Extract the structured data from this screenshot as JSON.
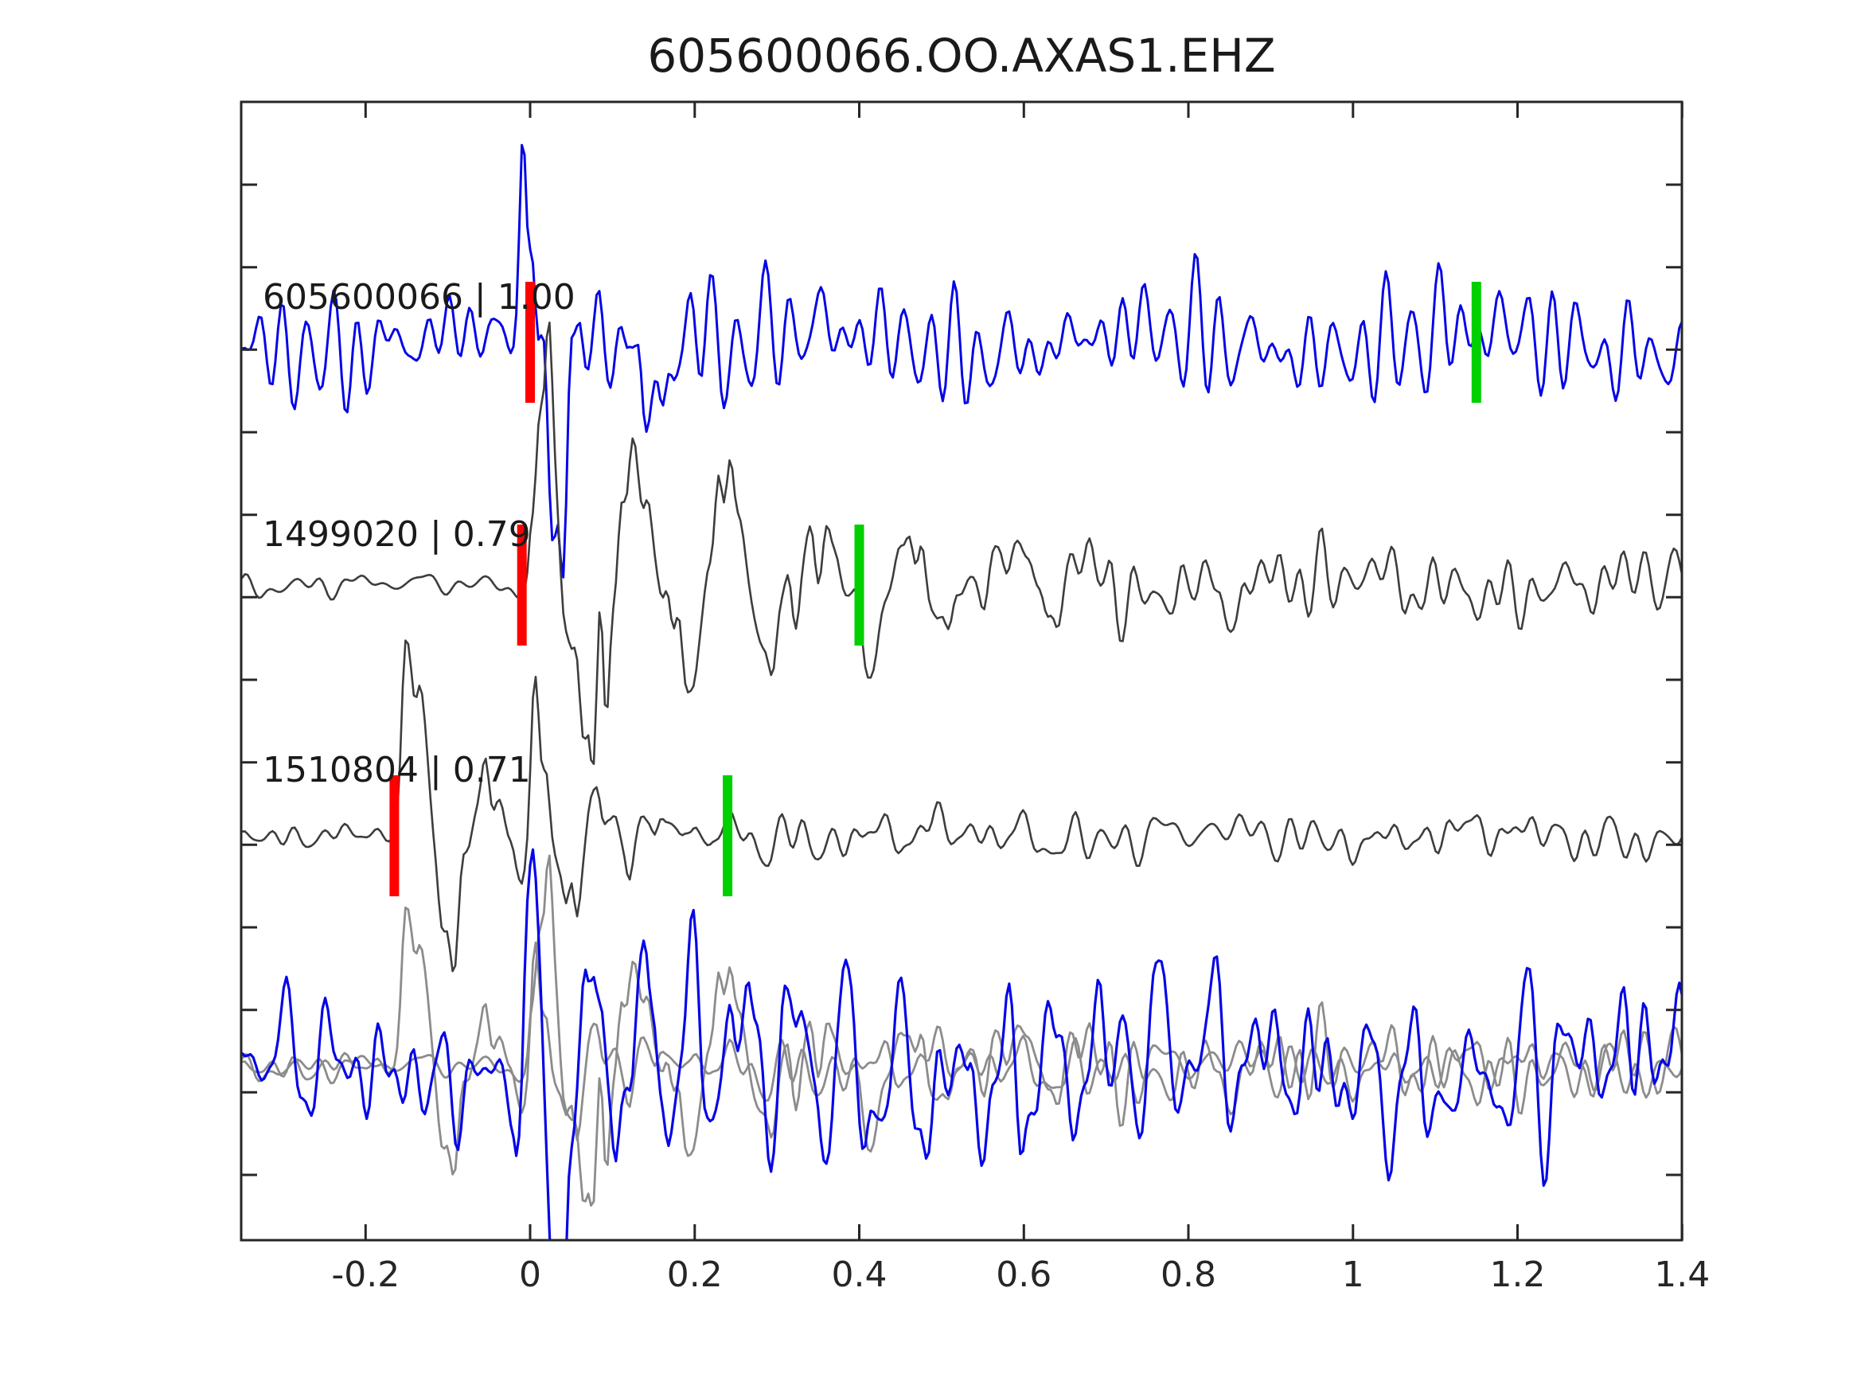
{
  "title": "605600066.OO.AXAS1.EHZ",
  "colors": {
    "background": "#ffffff",
    "spine": "#262626",
    "text": "#1a1a1a",
    "trace_blue": "#0505e8",
    "trace_dark": "#3d3d3d",
    "trace_gray": "#8c8c8c",
    "pick_red": "#ff0000",
    "pick_green": "#00cf00"
  },
  "chart_data": {
    "type": "line",
    "title": "605600066.OO.AXAS1.EHZ",
    "xlim": [
      -0.35,
      1.4
    ],
    "xticks": [
      -0.2,
      0,
      0.2,
      0.4,
      0.6,
      0.8,
      1,
      1.2,
      1.4
    ],
    "xtick_labels": [
      "-0.2",
      "0",
      "0.2",
      "0.4",
      "0.6",
      "0.8",
      "1",
      "1.2",
      "1.4"
    ],
    "ytick_count": 13,
    "grid": false,
    "legend": "none",
    "pick_markers": {
      "red": "#ff0000",
      "green": "#00cf00",
      "width": 12,
      "height": 152
    },
    "rows": [
      {
        "index": 0,
        "label": "605600066 | 1.00",
        "event_id": "605600066",
        "similarity": 1.0,
        "color": "#0505e8",
        "red_pick": 0.0,
        "green_pick": 1.15,
        "waveform": {
          "seed": 11,
          "pre_noise": 34,
          "post_noise": 34,
          "line_width": 3,
          "bursts": [
            {
              "t0": -0.02,
              "amp": 200,
              "decay": 0.05,
              "freq": 14,
              "phase": 0
            },
            {
              "t0": 0.01,
              "amp": -250,
              "decay": 0.04,
              "freq": 8,
              "phase": 0
            },
            {
              "t0": 0.12,
              "amp": -110,
              "decay": 0.06,
              "freq": 9,
              "phase": 0
            }
          ]
        }
      },
      {
        "index": 1,
        "label": "1499020 | 0.79",
        "event_id": "1499020",
        "similarity": 0.79,
        "color": "#3d3d3d",
        "red_pick": -0.01,
        "green_pick": 0.4,
        "waveform": {
          "seed": 23,
          "pre_noise": 7,
          "post_noise": 24,
          "line_width": 2.6,
          "bursts": [
            {
              "t0": -0.005,
              "amp": 235,
              "decay": 0.3,
              "freq": 9,
              "phase": 0.2
            },
            {
              "t0": 0.0,
              "amp": 120,
              "decay": 0.08,
              "freq": 18,
              "phase": 0
            }
          ]
        }
      },
      {
        "index": 2,
        "label": "1510804 | 0.71",
        "event_id": "1510804",
        "similarity": 0.71,
        "color": "#3d3d3d",
        "red_pick": -0.165,
        "green_pick": 0.24,
        "waveform": {
          "seed": 37,
          "pre_noise": 7,
          "post_noise": 15,
          "line_width": 2.6,
          "bursts": [
            {
              "t0": -0.165,
              "amp": 245,
              "decay": 0.1,
              "freq": 11,
              "phase": 0
            },
            {
              "t0": -0.01,
              "amp": 205,
              "decay": 0.09,
              "freq": 12,
              "phase": 0.5
            }
          ]
        }
      },
      {
        "index": 3,
        "label": null,
        "overlay": [
          {
            "color": "#8c8c8c",
            "waveform": {
              "seed": 37,
              "pre_noise": 8,
              "post_noise": 18,
              "line_width": 2.8,
              "bursts": [
                {
                  "t0": -0.165,
                  "amp": 195,
                  "decay": 0.1,
                  "freq": 11,
                  "phase": 0
                },
                {
                  "t0": -0.01,
                  "amp": 165,
                  "decay": 0.09,
                  "freq": 12,
                  "phase": 0.5
                }
              ]
            }
          },
          {
            "color": "#8c8c8c",
            "waveform": {
              "seed": 23,
              "pre_noise": 8,
              "post_noise": 26,
              "line_width": 2.8,
              "bursts": [
                {
                  "t0": -0.005,
                  "amp": 190,
                  "decay": 0.28,
                  "freq": 9,
                  "phase": 0.2
                },
                {
                  "t0": 0.0,
                  "amp": 95,
                  "decay": 0.08,
                  "freq": 18,
                  "phase": 0
                }
              ]
            }
          },
          {
            "color": "#0505e8",
            "waveform": {
              "seed": 51,
              "pre_noise": 40,
              "post_noise": 52,
              "line_width": 3.2,
              "bursts": [
                {
                  "t0": -0.02,
                  "amp": 160,
                  "decay": 0.05,
                  "freq": 14,
                  "phase": 0
                },
                {
                  "t0": 0.01,
                  "amp": -215,
                  "decay": 0.04,
                  "freq": 8,
                  "phase": 0
                },
                {
                  "t0": 0.0,
                  "amp": 90,
                  "decay": 0.5,
                  "freq": 16,
                  "phase": 0.8
                }
              ]
            }
          }
        ]
      }
    ]
  }
}
